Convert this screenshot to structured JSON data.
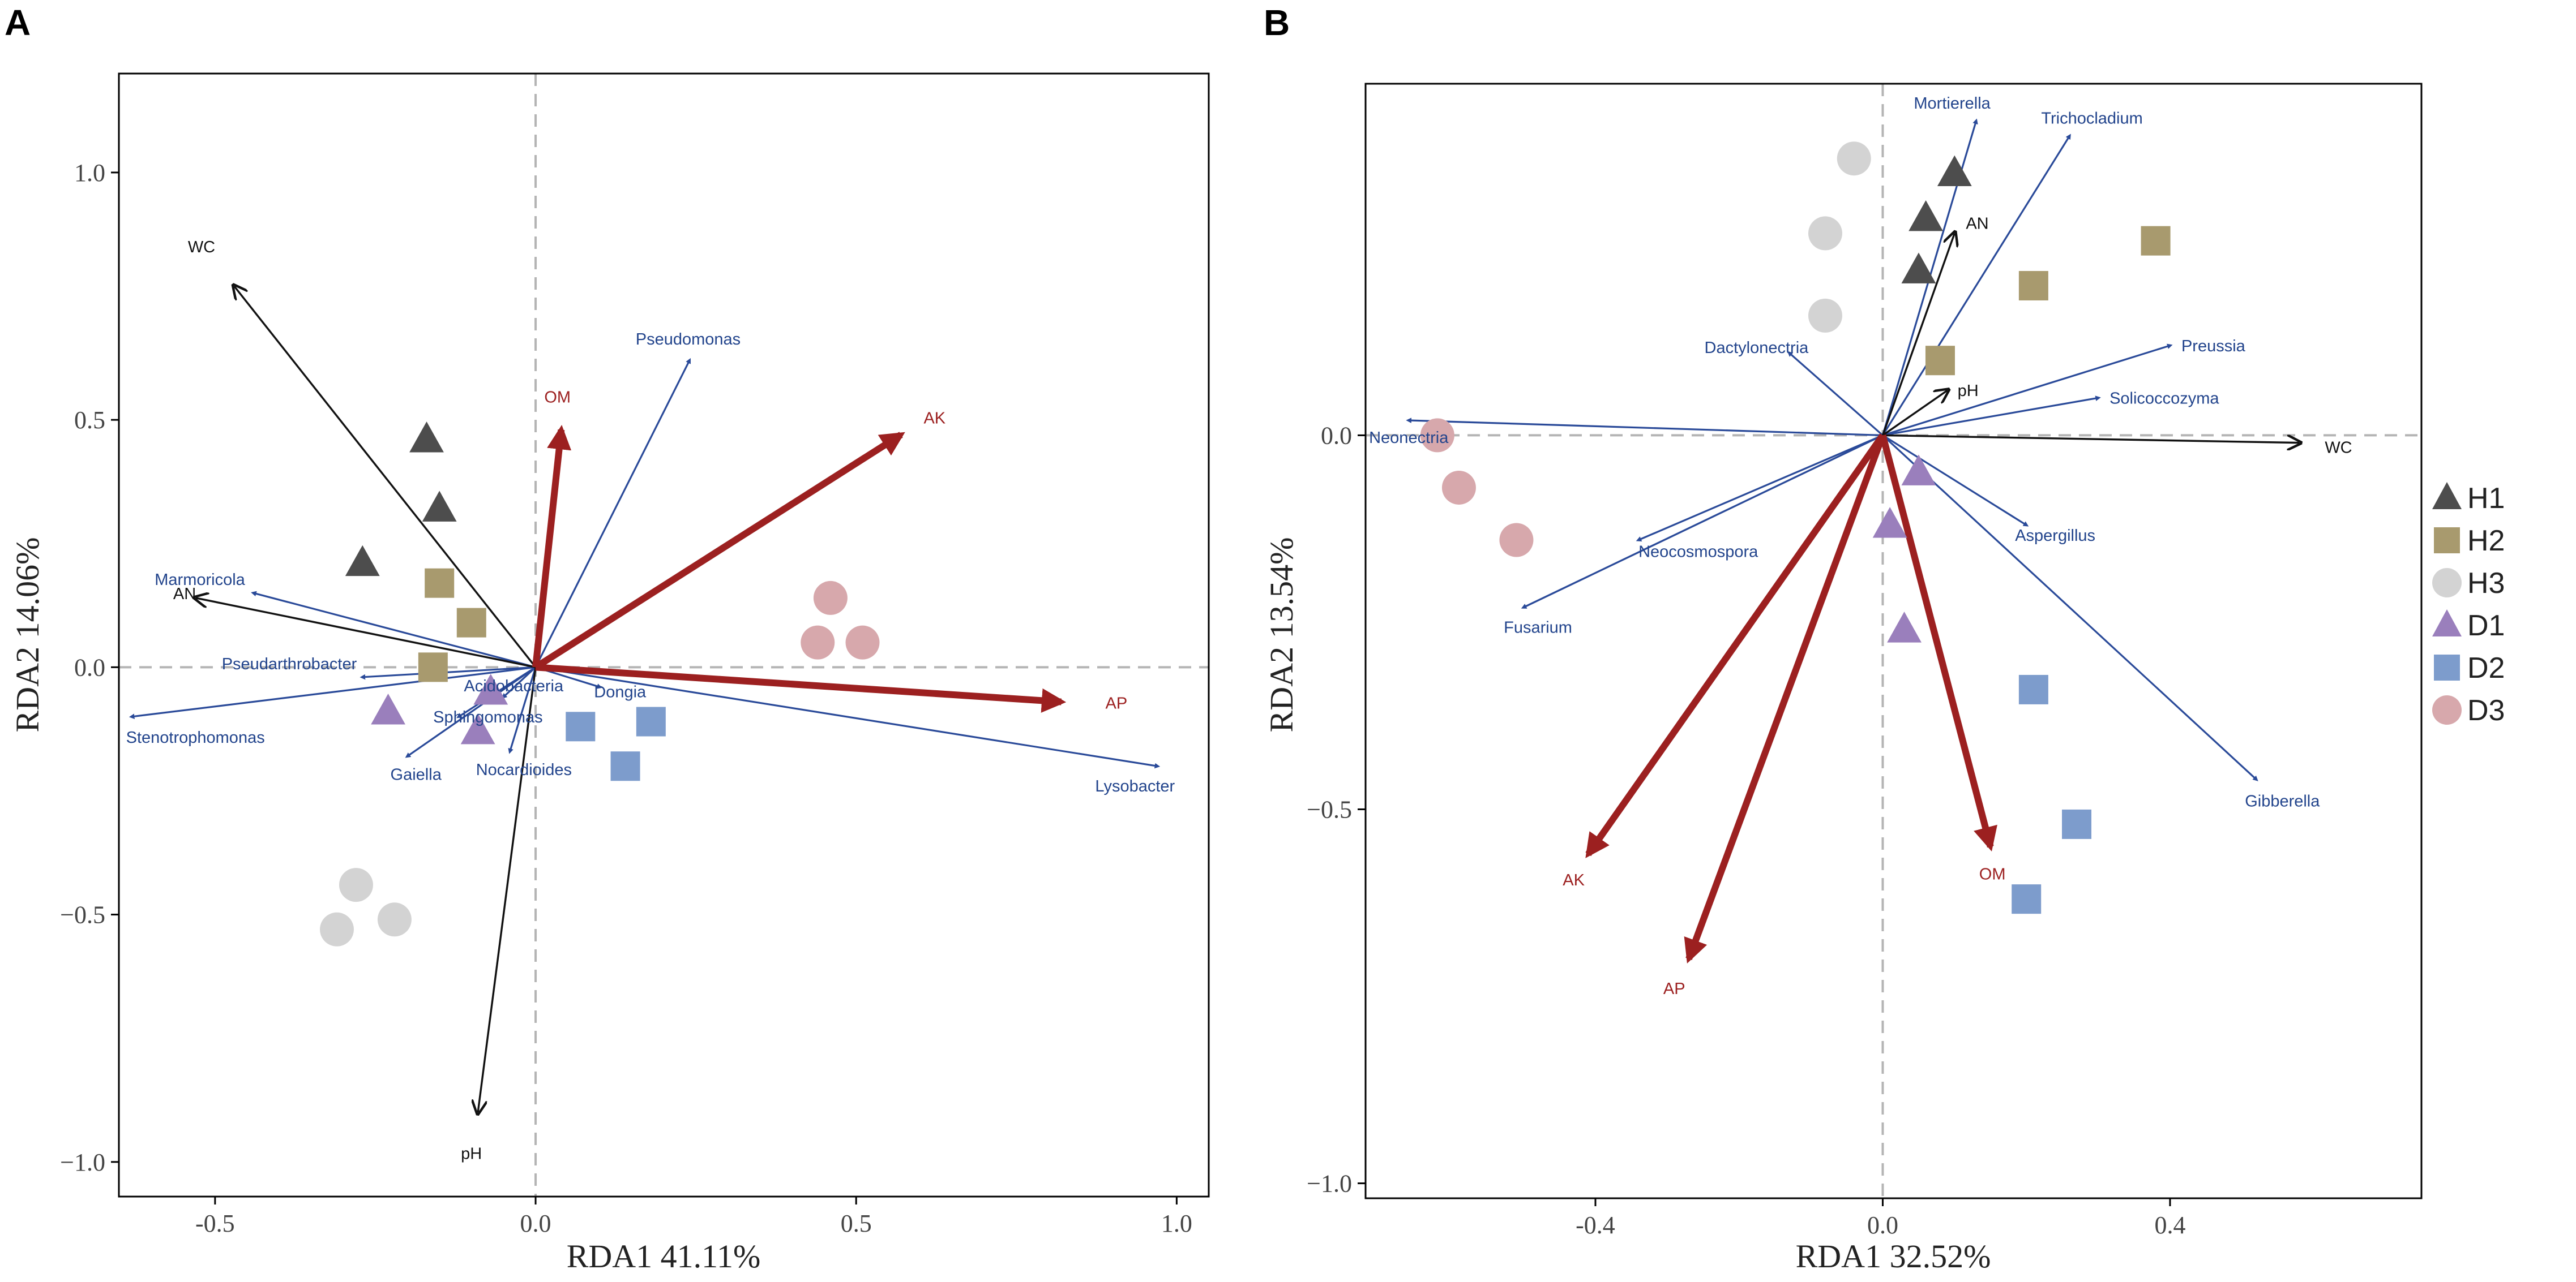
{
  "colors": {
    "H1": "#4d4d4d",
    "H2": "#a89a6e",
    "H3": "#d3d3d3",
    "D1": "#9a7fbc",
    "D2": "#7d9ccc",
    "D3": "#d7a8ac",
    "taxa": "#2a4a99",
    "env_black": "#111111",
    "env_red": "#9c2020",
    "zero_line": "#b4b4b4",
    "frame": "#000000"
  },
  "legend": {
    "entries": [
      {
        "group": "H1",
        "label": "H1",
        "shape": "triangle"
      },
      {
        "group": "H2",
        "label": "H2",
        "shape": "square"
      },
      {
        "group": "H3",
        "label": "H3",
        "shape": "circle"
      },
      {
        "group": "D1",
        "label": "D1",
        "shape": "triangle"
      },
      {
        "group": "D2",
        "label": "D2",
        "shape": "square"
      },
      {
        "group": "D3",
        "label": "D3",
        "shape": "circle"
      }
    ]
  },
  "chart_data": [
    {
      "panel": "A",
      "type": "scatter",
      "title": "",
      "xlabel": "RDA1 41.11%",
      "ylabel": "RDA2 14.06%",
      "xlim": [
        -0.65,
        1.05
      ],
      "ylim": [
        -1.07,
        1.2
      ],
      "xticks": [
        -0.5,
        0.0,
        0.5,
        1.0
      ],
      "xtick_labels": [
        "-0.5",
        "0.0",
        "0.5",
        "1.0"
      ],
      "yticks": [
        -1.0,
        -0.5,
        0.0,
        0.5,
        1.0
      ],
      "ytick_labels": [
        "−1.0",
        "−0.5",
        "0.0",
        "0.5",
        "1.0"
      ],
      "samples": [
        {
          "group": "H1",
          "points": [
            [
              -0.17,
              0.46
            ],
            [
              -0.15,
              0.32
            ],
            [
              -0.27,
              0.21
            ]
          ]
        },
        {
          "group": "H2",
          "points": [
            [
              -0.15,
              0.17
            ],
            [
              -0.1,
              0.09
            ],
            [
              -0.16,
              0.0
            ]
          ]
        },
        {
          "group": "H3",
          "points": [
            [
              -0.28,
              -0.44
            ],
            [
              -0.31,
              -0.53
            ],
            [
              -0.22,
              -0.51
            ]
          ]
        },
        {
          "group": "D1",
          "points": [
            [
              -0.07,
              -0.05
            ],
            [
              -0.23,
              -0.09
            ],
            [
              -0.09,
              -0.13
            ]
          ]
        },
        {
          "group": "D2",
          "points": [
            [
              0.07,
              -0.12
            ],
            [
              0.18,
              -0.11
            ],
            [
              0.14,
              -0.2
            ]
          ]
        },
        {
          "group": "D3",
          "points": [
            [
              0.46,
              0.14
            ],
            [
              0.44,
              0.05
            ],
            [
              0.51,
              0.05
            ]
          ]
        }
      ],
      "taxa": [
        {
          "label": "Pseudomonas",
          "x": 0.24,
          "y": 0.62
        },
        {
          "label": "Marmoricola",
          "x": -0.44,
          "y": 0.15
        },
        {
          "label": "Pseudarthrobacter",
          "x": -0.27,
          "y": -0.02
        },
        {
          "label": "Stenotrophomonas",
          "x": -0.63,
          "y": -0.1
        },
        {
          "label": "Gaiella",
          "x": -0.2,
          "y": -0.18
        },
        {
          "label": "Sphingomonas",
          "x": -0.12,
          "y": -0.1
        },
        {
          "label": "Acidobacteria",
          "x": -0.05,
          "y": -0.06
        },
        {
          "label": "Nocardioides",
          "x": -0.04,
          "y": -0.17
        },
        {
          "label": "Dongia",
          "x": 0.1,
          "y": -0.04
        },
        {
          "label": "Lysobacter",
          "x": 0.97,
          "y": -0.2
        }
      ],
      "env_black": [
        {
          "label": "WC",
          "x": -0.47,
          "y": 0.77
        },
        {
          "label": "AN",
          "x": -0.53,
          "y": 0.14
        },
        {
          "label": "pH",
          "x": -0.09,
          "y": -0.9
        }
      ],
      "env_red": [
        {
          "label": "OM",
          "x": 0.04,
          "y": 0.48
        },
        {
          "label": "AK",
          "x": 0.57,
          "y": 0.47
        },
        {
          "label": "AP",
          "x": 0.82,
          "y": -0.07
        }
      ]
    },
    {
      "panel": "B",
      "type": "scatter",
      "title": "",
      "xlabel": "RDA1 32.52%",
      "ylabel": "RDA2 13.54%",
      "xlim": [
        -0.72,
        0.75
      ],
      "ylim": [
        -1.02,
        0.47
      ],
      "xticks": [
        -0.4,
        0.0,
        0.4
      ],
      "xtick_labels": [
        "-0.4",
        "0.0",
        "0.4"
      ],
      "yticks": [
        -1.0,
        -0.5,
        0.0
      ],
      "ytick_labels": [
        "−1.0",
        "−0.5",
        "0.0"
      ],
      "samples": [
        {
          "group": "H1",
          "points": [
            [
              0.1,
              0.35
            ],
            [
              0.06,
              0.29
            ],
            [
              0.05,
              0.22
            ]
          ]
        },
        {
          "group": "H2",
          "points": [
            [
              0.38,
              0.26
            ],
            [
              0.21,
              0.2
            ],
            [
              0.08,
              0.1
            ]
          ]
        },
        {
          "group": "H3",
          "points": [
            [
              -0.04,
              0.37
            ],
            [
              -0.08,
              0.27
            ],
            [
              -0.08,
              0.16
            ]
          ]
        },
        {
          "group": "D1",
          "points": [
            [
              0.05,
              -0.05
            ],
            [
              0.01,
              -0.12
            ],
            [
              0.03,
              -0.26
            ]
          ]
        },
        {
          "group": "D2",
          "points": [
            [
              0.21,
              -0.34
            ],
            [
              0.27,
              -0.52
            ],
            [
              0.2,
              -0.62
            ]
          ]
        },
        {
          "group": "D3",
          "points": [
            [
              -0.62,
              0.0
            ],
            [
              -0.59,
              -0.07
            ],
            [
              -0.51,
              -0.14
            ]
          ]
        }
      ],
      "taxa": [
        {
          "label": "Mortierella",
          "x": 0.13,
          "y": 0.42
        },
        {
          "label": "Trichocladium",
          "x": 0.26,
          "y": 0.4
        },
        {
          "label": "Dactylonectria",
          "x": -0.13,
          "y": 0.11
        },
        {
          "label": "Preussia",
          "x": 0.4,
          "y": 0.12
        },
        {
          "label": "Solicoccozyma",
          "x": 0.3,
          "y": 0.05
        },
        {
          "label": "Neonectria",
          "x": -0.66,
          "y": 0.02
        },
        {
          "label": "Neocosmospora",
          "x": -0.34,
          "y": -0.14
        },
        {
          "label": "Fusarium",
          "x": -0.5,
          "y": -0.23
        },
        {
          "label": "Aspergillus",
          "x": 0.2,
          "y": -0.12
        },
        {
          "label": "Gibberella",
          "x": 0.52,
          "y": -0.46
        }
      ],
      "env_black": [
        {
          "label": "AN",
          "x": 0.1,
          "y": 0.27
        },
        {
          "label": "pH",
          "x": 0.09,
          "y": 0.06
        },
        {
          "label": "WC",
          "x": 0.58,
          "y": -0.01
        }
      ],
      "env_red": [
        {
          "label": "AK",
          "x": -0.41,
          "y": -0.56
        },
        {
          "label": "AP",
          "x": -0.27,
          "y": -0.7
        },
        {
          "label": "OM",
          "x": 0.15,
          "y": -0.55
        }
      ]
    }
  ]
}
